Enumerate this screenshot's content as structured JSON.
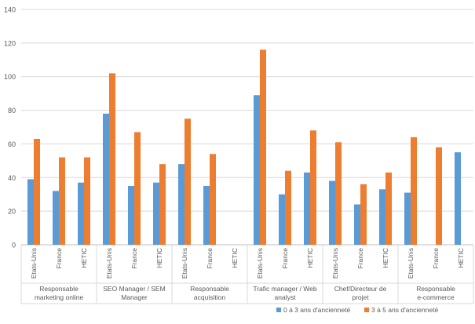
{
  "chart_data": {
    "type": "bar",
    "title": "",
    "xlabel": "",
    "ylabel": "",
    "ylim": [
      0,
      140
    ],
    "yticks": [
      0,
      20,
      40,
      60,
      80,
      100,
      120,
      140
    ],
    "grid": true,
    "legend_position": "bottom-right",
    "groups": [
      {
        "label": "Responsable marketing online",
        "categories": [
          "Etats-Unis",
          "France",
          "HETIC"
        ]
      },
      {
        "label": "SEO Manager / SEM Manager",
        "categories": [
          "Etats-Unis",
          "France",
          "HETIC"
        ]
      },
      {
        "label": "Responsable acquisition",
        "categories": [
          "Etats-Unis",
          "France",
          "HETIC"
        ]
      },
      {
        "label": "Trafic manager / Web analyst",
        "categories": [
          "Etats-Unis",
          "France",
          "HETIC"
        ]
      },
      {
        "label": "Chef/Directeur de projet",
        "categories": [
          "Etats-Unis",
          "France",
          "HETIC"
        ]
      },
      {
        "label": "Responsable e-commerce",
        "categories": [
          "Etats-Unis",
          "France",
          "HETIC"
        ]
      }
    ],
    "series": [
      {
        "name": "0 à 3 ans d'ancienneté",
        "color": "#5B9BD5",
        "values": [
          39,
          32,
          37,
          78,
          35,
          37,
          48,
          35,
          null,
          89,
          30,
          43,
          38,
          24,
          33,
          31,
          null,
          55
        ]
      },
      {
        "name": "3 à 5 ans d'ancienneté",
        "color": "#ED7D31",
        "values": [
          63,
          52,
          52,
          102,
          67,
          48,
          75,
          54,
          null,
          116,
          44,
          68,
          61,
          36,
          43,
          64,
          58,
          null
        ]
      }
    ]
  }
}
